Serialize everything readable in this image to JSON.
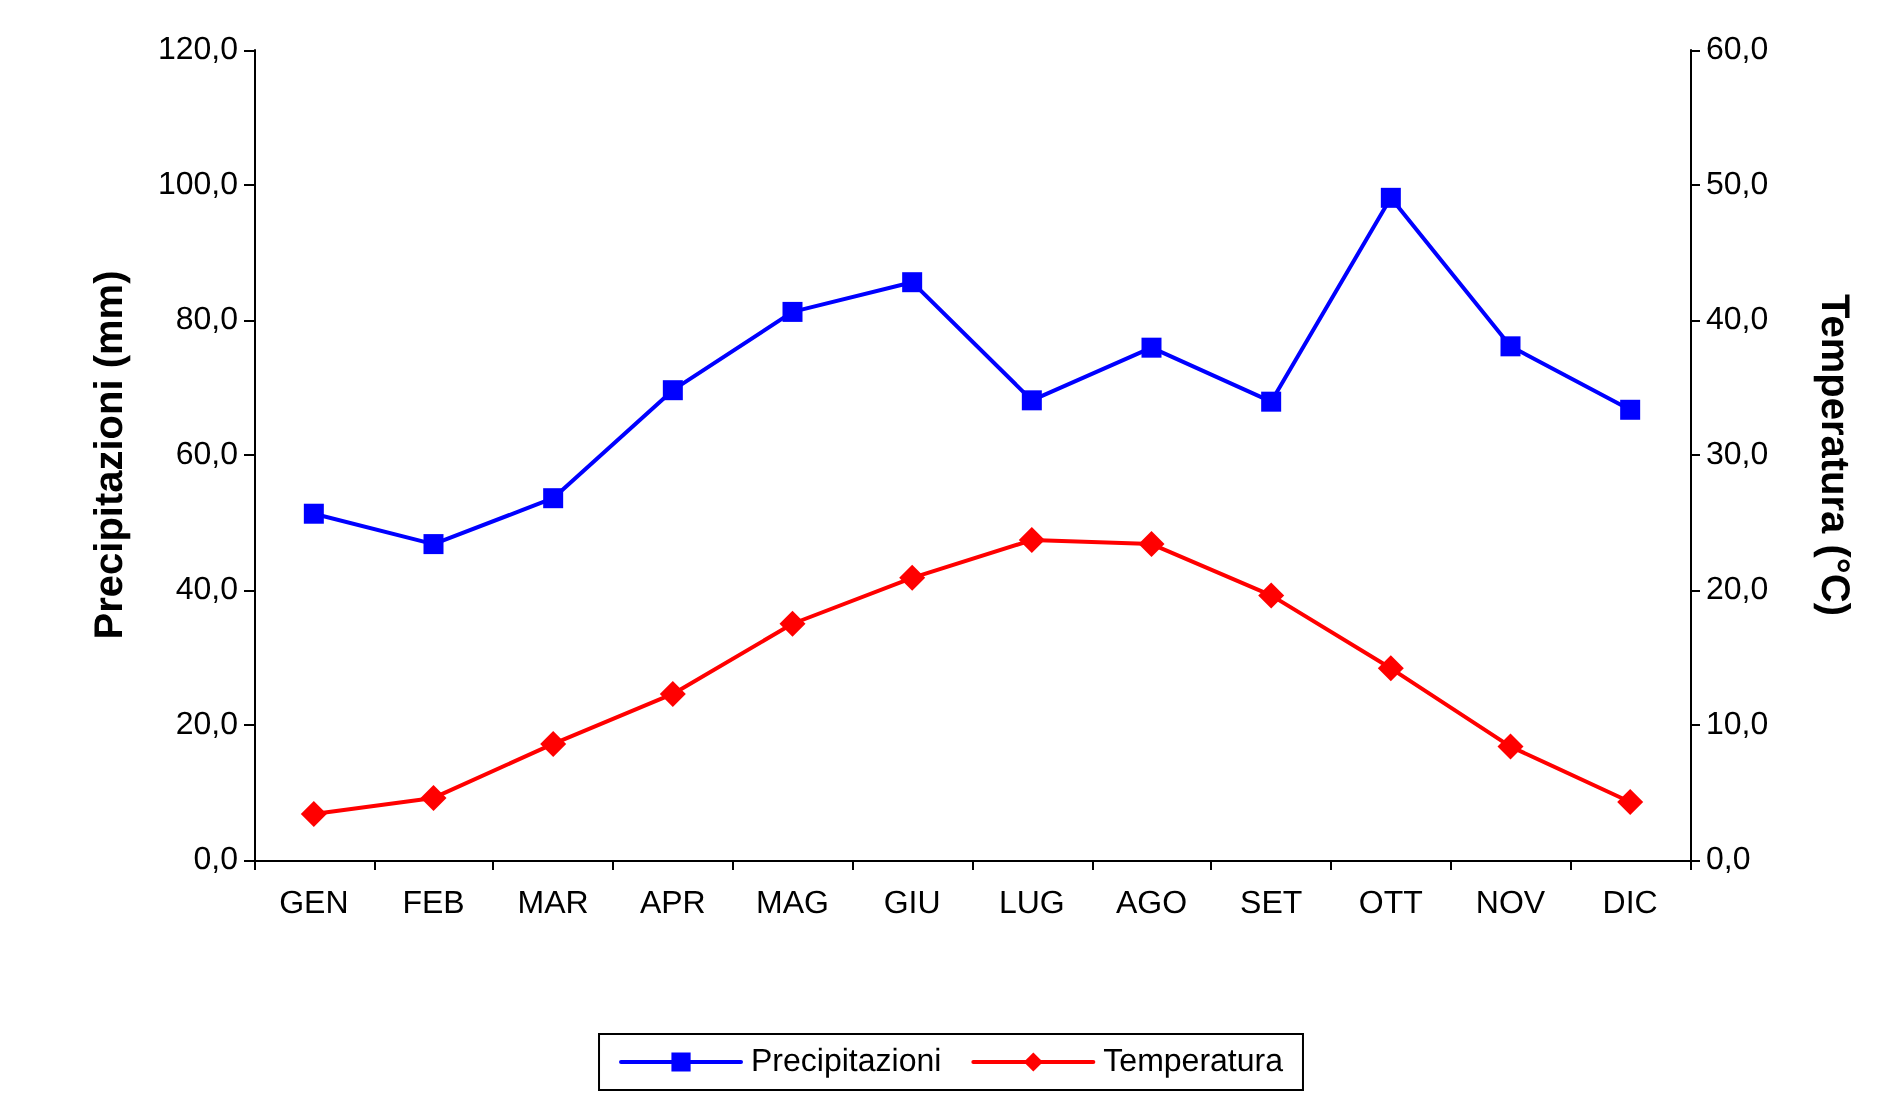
{
  "chart_data": {
    "type": "line",
    "ylabel": "Precipitazioni (mm)",
    "y2label": "Temperatura (°C)",
    "categories": [
      "GEN",
      "FEB",
      "MAR",
      "APR",
      "MAG",
      "GIU",
      "LUG",
      "AGO",
      "SET",
      "OTT",
      "NOV",
      "DIC"
    ],
    "series": [
      {
        "name": "Precipitazioni",
        "color": "#0000ff",
        "marker": "square",
        "values": [
          51.3,
          46.8,
          53.6,
          69.6,
          81.2,
          85.6,
          68.1,
          75.9,
          67.9,
          98.1,
          76.1,
          66.7
        ]
      },
      {
        "name": "Temperatura",
        "color": "#ff0000",
        "marker": "diamond",
        "axis": "y2",
        "values": [
          3.4,
          4.6,
          8.6,
          12.3,
          17.5,
          20.9,
          23.7,
          23.4,
          19.6,
          14.2,
          8.4,
          4.3
        ]
      }
    ],
    "ylim": [
      0,
      120
    ],
    "yticks": [
      {
        "value": 0,
        "label": "0,0"
      },
      {
        "value": 20,
        "label": "20,0"
      },
      {
        "value": 40,
        "label": "40,0"
      },
      {
        "value": 60,
        "label": "60,0"
      },
      {
        "value": 80,
        "label": "80,0"
      },
      {
        "value": 100,
        "label": "100,0"
      },
      {
        "value": 120,
        "label": "120,0"
      }
    ],
    "y2lim": [
      0,
      60
    ],
    "y2ticks": [
      {
        "value": 0,
        "label": "0,0"
      },
      {
        "value": 10,
        "label": "10,0"
      },
      {
        "value": 20,
        "label": "20,0"
      },
      {
        "value": 30,
        "label": "30,0"
      },
      {
        "value": 40,
        "label": "40,0"
      },
      {
        "value": 50,
        "label": "50,0"
      },
      {
        "value": 60,
        "label": "60,0"
      }
    ],
    "grid": false,
    "legend": "bottom",
    "line_style": "solid"
  }
}
